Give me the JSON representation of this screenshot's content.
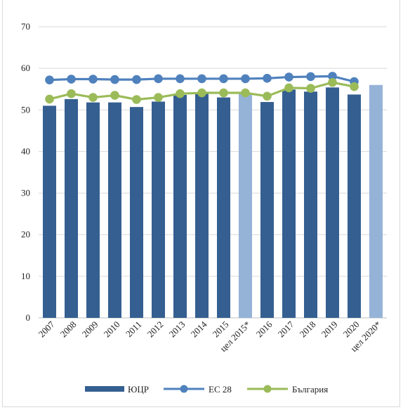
{
  "chart_data": {
    "type": "bar",
    "title": "",
    "categories": [
      "2007",
      "2008",
      "2009",
      "2010",
      "2011",
      "2012",
      "2013",
      "2014",
      "2015",
      "цел 2015*",
      "2016",
      "2017",
      "2018",
      "2019",
      "2020",
      "цел 2020*"
    ],
    "target_categories": [
      "цел 2015*",
      "цел 2020*"
    ],
    "ylim": [
      0,
      70
    ],
    "yticks": [
      0,
      10,
      20,
      30,
      40,
      50,
      60,
      70
    ],
    "grid": true,
    "legend_position": "bottom",
    "series": [
      {
        "name": "ЮЦР",
        "kind": "bar",
        "values": [
          51.0,
          52.6,
          51.8,
          51.8,
          50.7,
          52.0,
          53.6,
          53.9,
          53.0,
          54.0,
          51.9,
          54.9,
          54.4,
          55.4,
          53.7,
          56.0
        ]
      },
      {
        "name": "ЕС 28",
        "kind": "line",
        "values": [
          57.2,
          57.4,
          57.4,
          57.3,
          57.3,
          57.5,
          57.5,
          57.5,
          57.5,
          57.5,
          57.6,
          57.9,
          58.0,
          58.1,
          56.8,
          null
        ]
      },
      {
        "name": "България",
        "kind": "line",
        "values": [
          52.6,
          53.9,
          53.0,
          53.5,
          52.5,
          53.0,
          53.9,
          54.1,
          54.1,
          54.1,
          53.3,
          55.3,
          55.2,
          56.6,
          55.6,
          null
        ]
      }
    ]
  },
  "colors": {
    "bar": "#355f91",
    "bar_target": "#95b3d7",
    "eu_line": "#4f81bd",
    "bg_line": "#9bbb59",
    "grid": "#d9d9d9",
    "axis": "#bfbfbf"
  }
}
